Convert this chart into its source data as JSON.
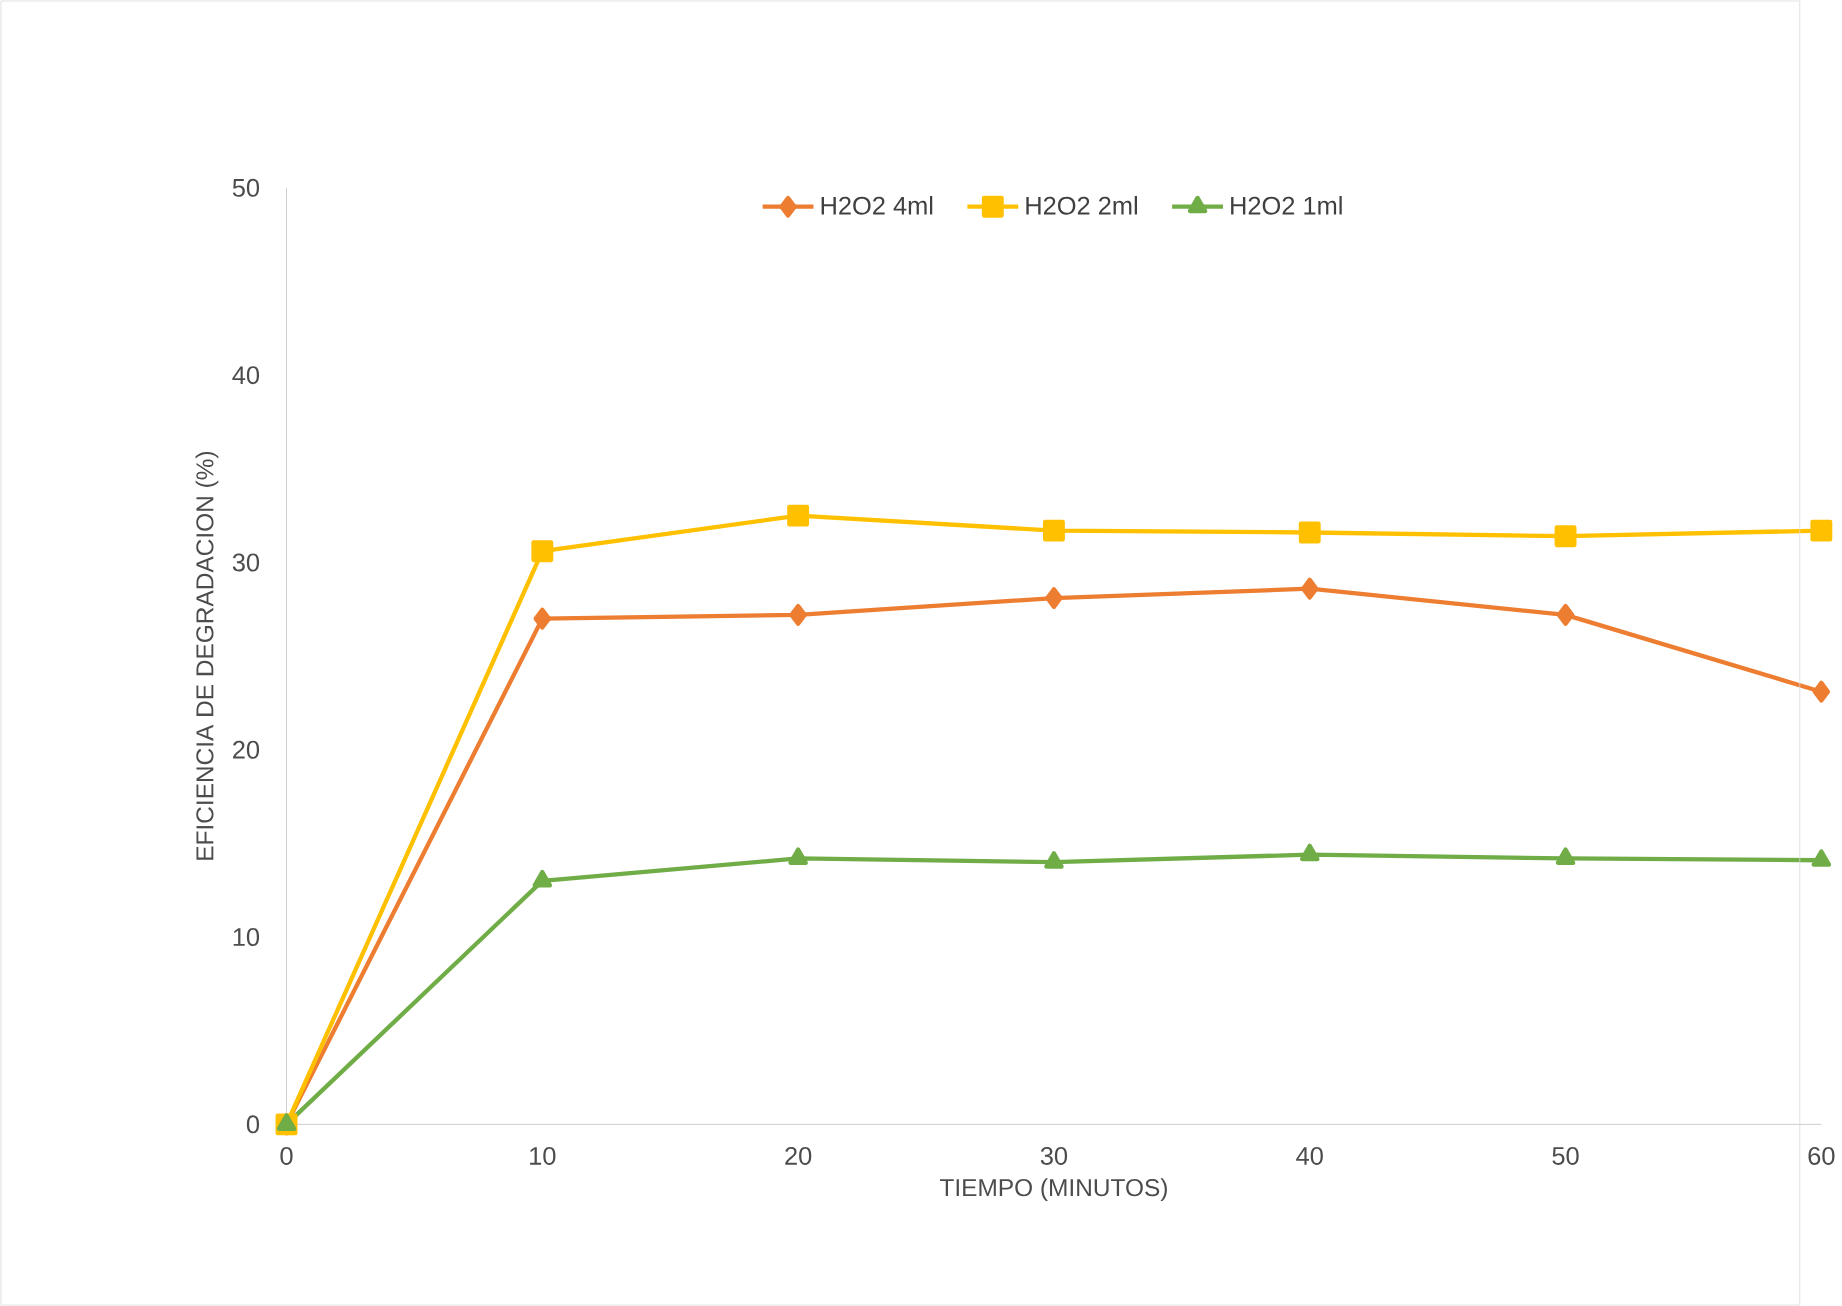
{
  "chart_data": {
    "type": "line",
    "xlabel": "TIEMPO (MINUTOS)",
    "ylabel": "EFICIENCIA DE DEGRADACION (%)",
    "x": [
      0,
      10,
      20,
      30,
      40,
      50,
      60
    ],
    "xlim": [
      0,
      60
    ],
    "xticks": [
      0,
      10,
      20,
      30,
      40,
      50,
      60
    ],
    "ylim": [
      0,
      50
    ],
    "yticks": [
      0,
      10,
      20,
      30,
      40,
      50
    ],
    "grid": false,
    "legend": "top",
    "series": [
      {
        "name": "H2O2 4ml",
        "color": "#ed7d31",
        "marker": "diamond",
        "values": [
          0,
          27.0,
          27.2,
          28.1,
          28.6,
          27.2,
          23.1
        ]
      },
      {
        "name": "H2O2 2ml",
        "color": "#ffc000",
        "marker": "square",
        "values": [
          0,
          30.6,
          32.5,
          31.7,
          31.6,
          31.4,
          31.7
        ]
      },
      {
        "name": "H2O2 1ml",
        "color": "#70ad47",
        "marker": "triangle",
        "values": [
          0,
          13.0,
          14.2,
          14.0,
          14.4,
          14.2,
          14.1
        ]
      }
    ]
  }
}
